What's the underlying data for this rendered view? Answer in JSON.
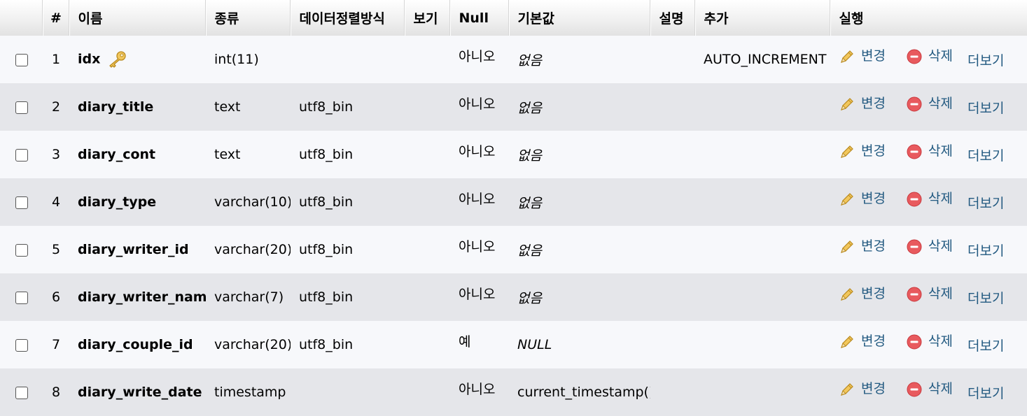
{
  "headers": {
    "hash": "#",
    "name": "이름",
    "type": "종류",
    "collation": "데이터정렬방식",
    "attributes": "보기",
    "null": "Null",
    "default": "기본값",
    "comment": "설명",
    "extra": "추가",
    "action": "실행"
  },
  "actions": {
    "change": "변경",
    "drop": "삭제",
    "more": "더보기"
  },
  "rows": [
    {
      "num": "1",
      "name": "idx",
      "type": "int(11)",
      "collation": "",
      "attributes": "",
      "null": "아니오",
      "default": "없음",
      "comment": "",
      "extra": "AUTO_INCREMENT"
    },
    {
      "num": "2",
      "name": "diary_title",
      "type": "text",
      "collation": "utf8_bin",
      "attributes": "",
      "null": "아니오",
      "default": "없음",
      "comment": "",
      "extra": ""
    },
    {
      "num": "3",
      "name": "diary_cont",
      "type": "text",
      "collation": "utf8_bin",
      "attributes": "",
      "null": "아니오",
      "default": "없음",
      "comment": "",
      "extra": ""
    },
    {
      "num": "4",
      "name": "diary_type",
      "type": "varchar(10)",
      "collation": "utf8_bin",
      "attributes": "",
      "null": "아니오",
      "default": "없음",
      "comment": "",
      "extra": ""
    },
    {
      "num": "5",
      "name": "diary_writer_id",
      "type": "varchar(20)",
      "collation": "utf8_bin",
      "attributes": "",
      "null": "아니오",
      "default": "없음",
      "comment": "",
      "extra": ""
    },
    {
      "num": "6",
      "name": "diary_writer_name",
      "type": "varchar(7)",
      "collation": "utf8_bin",
      "attributes": "",
      "null": "아니오",
      "default": "없음",
      "comment": "",
      "extra": ""
    },
    {
      "num": "7",
      "name": "diary_couple_id",
      "type": "varchar(20)",
      "collation": "utf8_bin",
      "attributes": "",
      "null": "예",
      "default": "NULL",
      "comment": "",
      "extra": ""
    },
    {
      "num": "8",
      "name": "diary_write_date",
      "type": "timestamp",
      "collation": "",
      "attributes": "",
      "null": "아니오",
      "default": "current_timestamp()",
      "comment": "",
      "extra": ""
    }
  ],
  "colors": {
    "link": "#235a81",
    "row_odd": "#f7f8fb",
    "row_even": "#e5e6ea",
    "drop_icon": "#e0474c",
    "pencil": "#e8b43a"
  }
}
